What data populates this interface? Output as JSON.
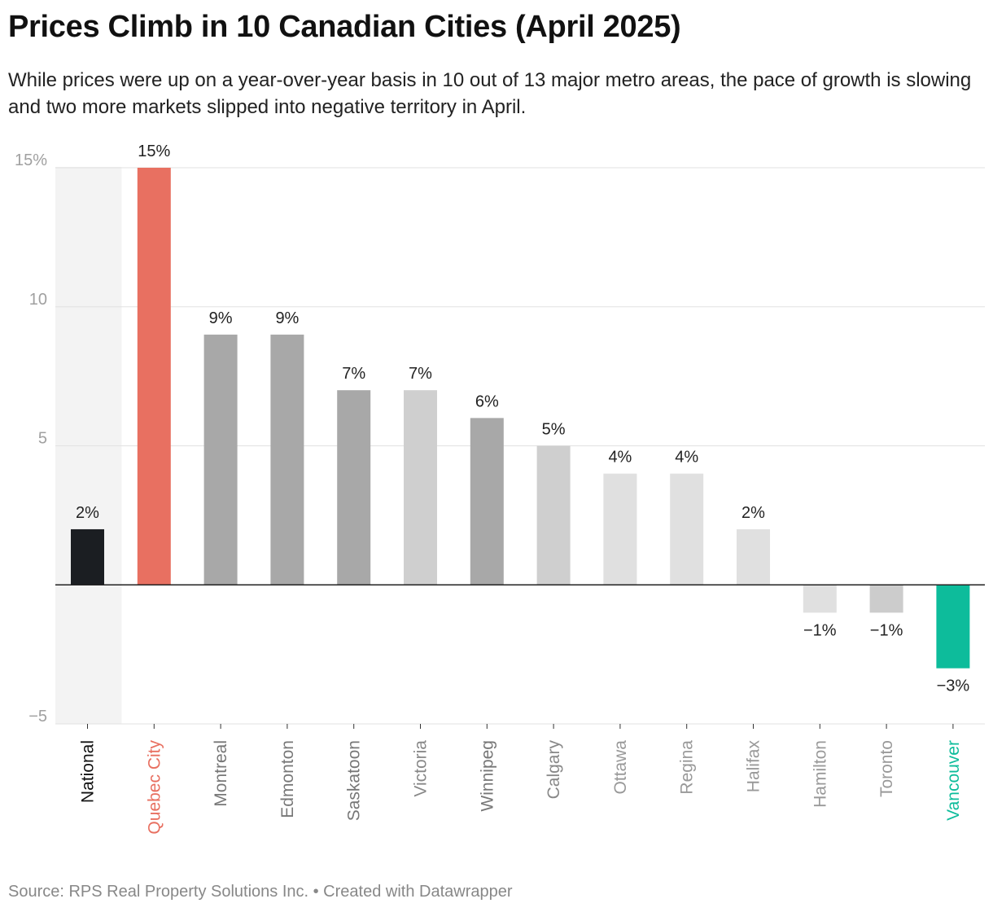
{
  "title": "Prices Climb in 10 Canadian Cities (April 2025)",
  "subtitle": "While prices were up on a year-over-year basis in 10 out of 13 major metro areas, the pace of growth is slowing and two more markets slipped into negative territory in April.",
  "footer": "Source: RPS Real Property Solutions Inc. • Created with Datawrapper",
  "chart_data": {
    "type": "bar",
    "categories": [
      "National",
      "Quebec City",
      "Montreal",
      "Edmonton",
      "Saskatoon",
      "Victoria",
      "Winnipeg",
      "Calgary",
      "Ottawa",
      "Regina",
      "Halifax",
      "Hamilton",
      "Toronto",
      "Vancouver"
    ],
    "values": [
      2,
      15,
      9,
      9,
      7,
      7,
      6,
      5,
      4,
      4,
      2,
      -1,
      -1,
      -3
    ],
    "value_labels": [
      "2%",
      "15%",
      "9%",
      "9%",
      "7%",
      "7%",
      "6%",
      "5%",
      "4%",
      "4%",
      "2%",
      "−1%",
      "−1%",
      "−3%"
    ],
    "bar_colors": [
      "#1b1e22",
      "#e87061",
      "#a8a8a8",
      "#a8a8a8",
      "#a8a8a8",
      "#cfcfcf",
      "#a8a8a8",
      "#cfcfcf",
      "#e0e0e0",
      "#e0e0e0",
      "#e0e0e0",
      "#e0e0e0",
      "#cccccc",
      "#0dbc9b"
    ],
    "label_colors": [
      "#111111",
      "#e87061",
      "#777777",
      "#777777",
      "#777777",
      "#888888",
      "#777777",
      "#888888",
      "#999999",
      "#999999",
      "#999999",
      "#999999",
      "#999999",
      "#0dbc9b"
    ],
    "highlight_category": "National",
    "y_ticks": [
      15,
      10,
      5,
      -5
    ],
    "y_tick_labels": [
      "15%",
      "10",
      "5",
      "−5"
    ],
    "ylim": [
      -5,
      15
    ],
    "grid": true,
    "xlabel": "",
    "ylabel": ""
  }
}
